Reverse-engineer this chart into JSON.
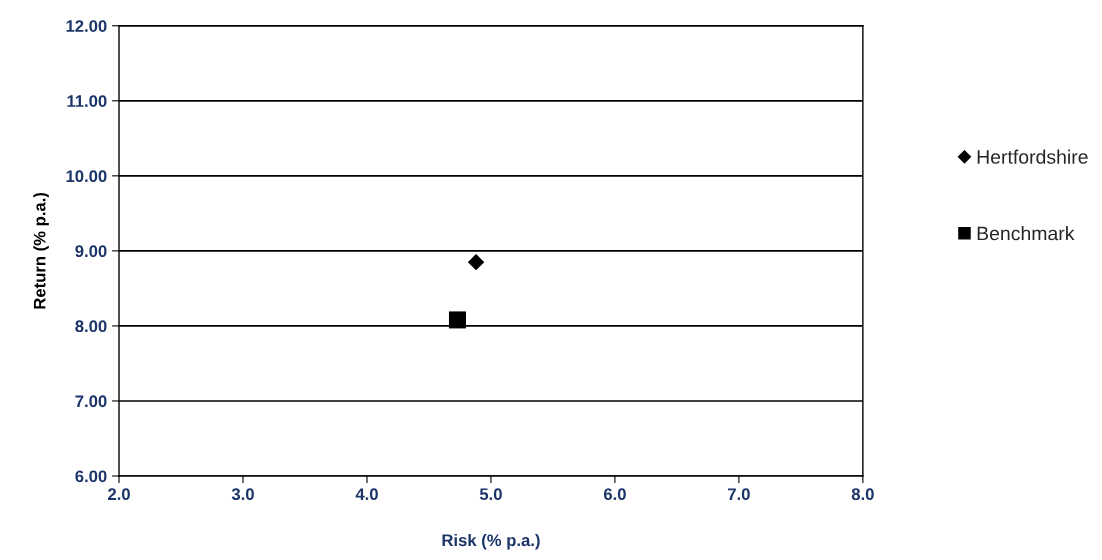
{
  "chart_data": {
    "type": "scatter",
    "xlabel": "Risk (% p.a.)",
    "ylabel": "Return (% p.a.)",
    "xlim": [
      2.0,
      8.0
    ],
    "xticks": [
      {
        "value": 2,
        "label": "2.0"
      },
      {
        "value": 3,
        "label": "3.0"
      },
      {
        "value": 4,
        "label": "4.0"
      },
      {
        "value": 5,
        "label": "5.0"
      },
      {
        "value": 6,
        "label": "6.0"
      },
      {
        "value": 7,
        "label": "7.0"
      },
      {
        "value": 8,
        "label": "8.0"
      }
    ],
    "ylim": [
      6,
      12
    ],
    "yticks": [
      {
        "value": 6,
        "label": "6.00"
      },
      {
        "value": 7,
        "label": "7.00"
      },
      {
        "value": 8,
        "label": "8.00"
      },
      {
        "value": 9,
        "label": "9.00"
      },
      {
        "value": 10,
        "label": "10.00"
      },
      {
        "value": 11,
        "label": "11.00"
      },
      {
        "value": 12,
        "label": "12.00"
      }
    ],
    "grid": "y",
    "legend": "right",
    "series": [
      {
        "name": "Hertfordshire",
        "color": "#000000",
        "marker": "diamond",
        "x": [
          4.88
        ],
        "values": [
          8.85
        ]
      },
      {
        "name": "Benchmark",
        "color": "#000000",
        "marker": "square",
        "x": [
          4.73
        ],
        "values": [
          8.08
        ]
      }
    ]
  }
}
